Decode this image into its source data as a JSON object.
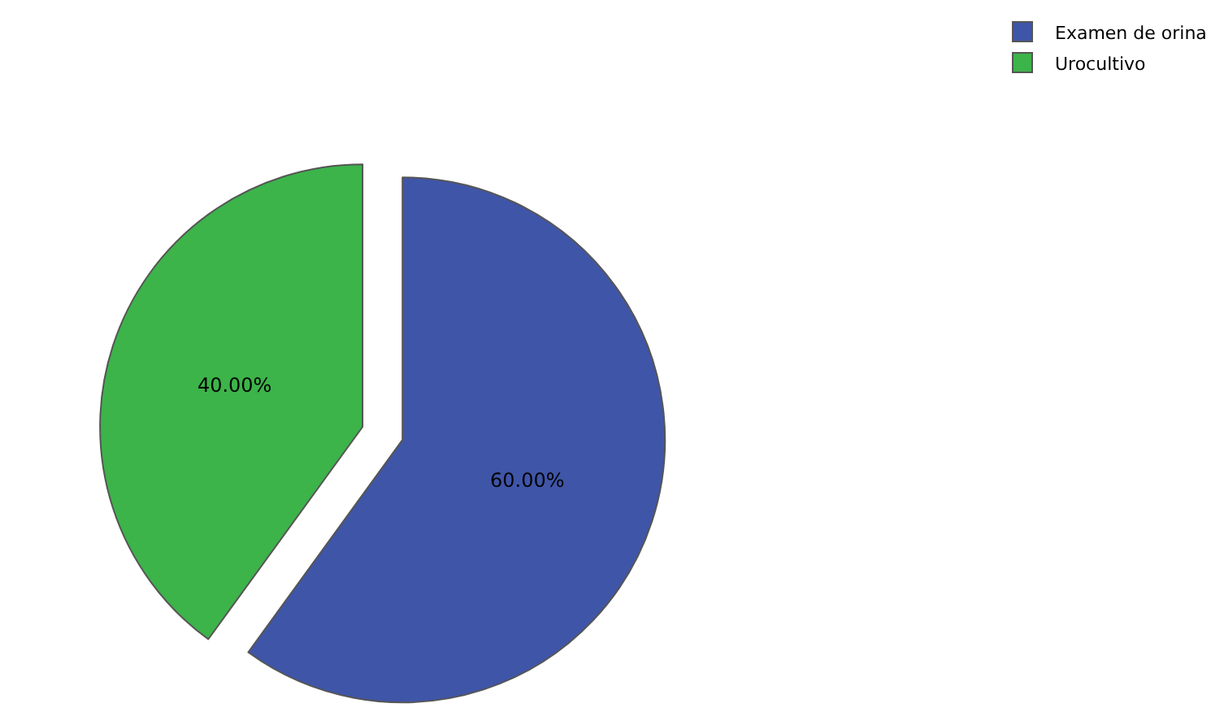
{
  "chart_data": {
    "type": "pie",
    "categories": [
      "Examen de orina",
      "Urocultivo"
    ],
    "values": [
      60,
      40
    ],
    "colors": [
      "#3f55a8",
      "#3cb44a"
    ],
    "value_labels": [
      "60.00%",
      "40.00%"
    ],
    "legend": "top right"
  }
}
